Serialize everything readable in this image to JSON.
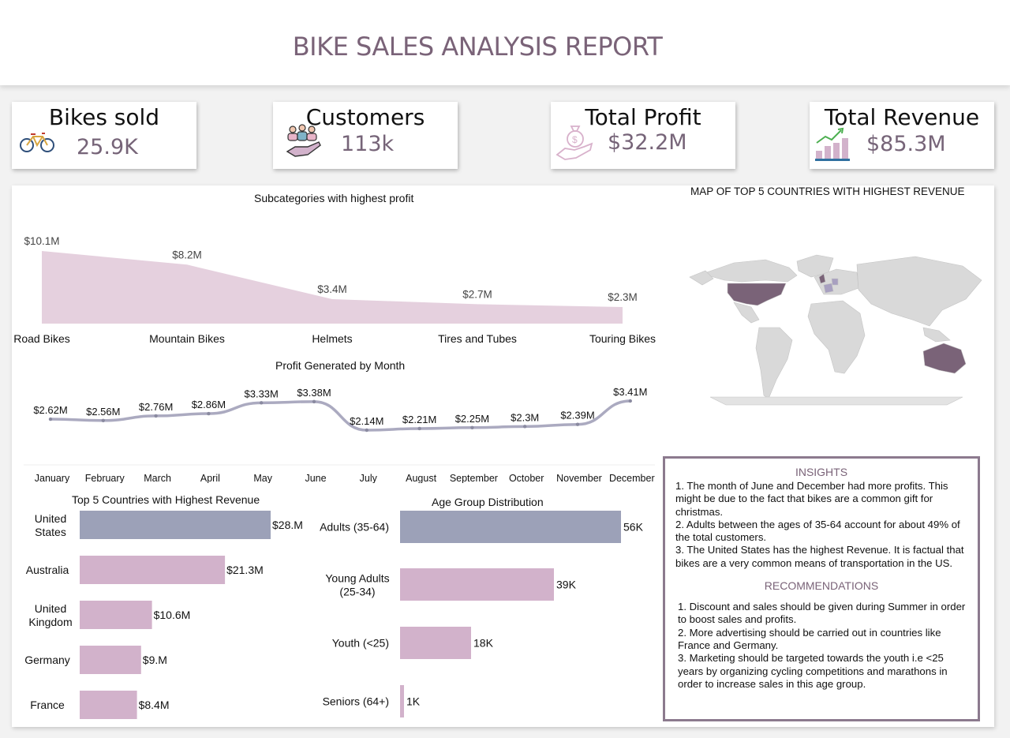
{
  "report_title": "BIKE SALES ANALYSIS REPORT",
  "kpis": [
    {
      "label": "Bikes sold",
      "value": "25.9K",
      "icon": "bicycle-icon"
    },
    {
      "label": "Customers",
      "value": "113k",
      "icon": "customers-hand-icon"
    },
    {
      "label": "Total Profit",
      "value": "$32.2M",
      "icon": "money-bag-hand-icon"
    },
    {
      "label": "Total Revenue",
      "value": "$85.3M",
      "icon": "growth-coins-icon"
    }
  ],
  "colors": {
    "area": "#e5d0de",
    "line": "#abaac0",
    "bar_top": "#9ca1b8",
    "bar": "#d2b2cb",
    "map_highlight": "#7a6378",
    "map_land": "#d9d9d9"
  },
  "map": {
    "title": "MAP OF TOP 5 COUNTRIES WITH HIGHEST REVENUE",
    "highlighted": [
      "United States",
      "Australia",
      "United Kingdom",
      "Germany",
      "France"
    ]
  },
  "chart_data": [
    {
      "type": "area",
      "title": "Subcategories with highest profit",
      "categories": [
        "Road Bikes",
        "Mountain Bikes",
        "Helmets",
        "Tires and Tubes",
        "Touring Bikes"
      ],
      "values": [
        10.1,
        8.2,
        3.4,
        2.7,
        2.3
      ],
      "data_labels": [
        "$10.1M",
        "$8.2M",
        "$3.4M",
        "$2.7M",
        "$2.3M"
      ],
      "unit": "$M"
    },
    {
      "type": "line",
      "title": "Profit Generated by Month",
      "categories": [
        "January",
        "February",
        "March",
        "April",
        "May",
        "June",
        "July",
        "August",
        "September",
        "October",
        "November",
        "December"
      ],
      "values": [
        2.62,
        2.56,
        2.76,
        2.86,
        3.33,
        3.38,
        2.14,
        2.21,
        2.25,
        2.3,
        2.39,
        3.41
      ],
      "data_labels": [
        "$2.62M",
        "$2.56M",
        "$2.76M",
        "$2.86M",
        "$3.33M",
        "$3.38M",
        "$2.14M",
        "$2.21M",
        "$2.25M",
        "$2.3M",
        "$2.39M",
        "$3.41M"
      ],
      "unit": "$M"
    },
    {
      "type": "bar",
      "orientation": "horizontal",
      "title": "Top 5 Countries with Highest Revenue",
      "categories": [
        "United States",
        "Australia",
        "United Kingdom",
        "Germany",
        "France"
      ],
      "values": [
        28,
        21.3,
        10.6,
        9,
        8.4
      ],
      "data_labels": [
        "$28.M",
        "$21.3M",
        "$10.6M",
        "$9.M",
        "$8.4M"
      ],
      "unit": "$M"
    },
    {
      "type": "bar",
      "orientation": "horizontal",
      "title": "Age Group Distribution",
      "categories": [
        "Adults (35-64)",
        "Young Adults (25-34)",
        "Youth (<25)",
        "Seniors (64+)"
      ],
      "values": [
        56,
        39,
        18,
        1
      ],
      "data_labels": [
        "56K",
        "39K",
        "18K",
        "1K"
      ],
      "unit": "K"
    }
  ],
  "insights": {
    "heading": "INSIGHTS",
    "text": "1. The month of June and December had more profits. This might be due to the fact that bikes are a common gift for christmas.\n2. Adults between the ages of 35-64 account for about 49% of the total customers.\n3. The United States has the highest Revenue. It is factual that bikes are a very common means of transportation in the US.",
    "rec_heading": "RECOMMENDATIONS",
    "rec_text": "1. Discount and sales should be given during Summer in order to boost sales and profits.\n2. More advertising should be carried out in countries like France and Germany.\n3. Marketing should be targeted towards the youth i.e <25 years by organizing cycling competitions and marathons in order to increase sales in this age group."
  }
}
